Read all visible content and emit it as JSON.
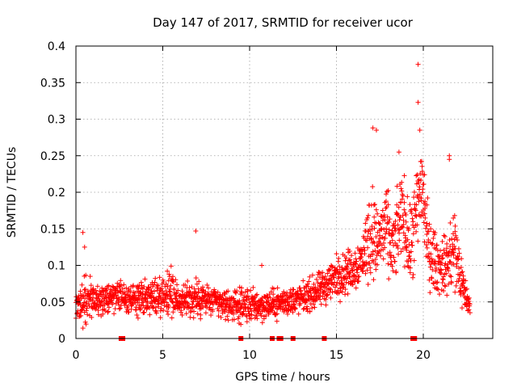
{
  "chart_data": {
    "type": "scatter",
    "title": "Day 147 of 2017, SRMTID for receiver ucor",
    "xlabel": "GPS time / hours",
    "ylabel": "SRMTID / TECUs",
    "xlim": [
      0,
      24
    ],
    "ylim": [
      0,
      0.4
    ],
    "xticks": [
      0,
      5,
      10,
      15,
      20
    ],
    "xtick_labels": [
      "0",
      "5",
      "10",
      "15",
      "20"
    ],
    "yticks": [
      0,
      0.05,
      0.1,
      0.15,
      0.2,
      0.25,
      0.3,
      0.35,
      0.4
    ],
    "ytick_labels": [
      "0",
      "0.05",
      "0.1",
      "0.15",
      "0.2",
      "0.25",
      "0.3",
      "0.35",
      "0.4"
    ],
    "grid": true,
    "marker": "plus",
    "color": "#ff0000",
    "data_gaps_at_zero": [
      2.6,
      2.7,
      9.5,
      11.3,
      11.7,
      11.8,
      12.5,
      14.3,
      19.4,
      19.5
    ],
    "envelope": {
      "x": [
        0,
        0.5,
        1,
        2,
        2.5,
        3,
        4,
        5,
        5.5,
        6,
        7,
        8,
        9,
        10,
        11,
        12,
        13,
        14,
        15,
        16,
        16.5,
        17,
        17.3,
        17.8,
        18.3,
        18.8,
        19.2,
        19.6,
        19.9,
        20.3,
        20.8,
        21.3,
        21.8,
        22.3,
        22.7
      ],
      "mean": [
        0.045,
        0.055,
        0.05,
        0.055,
        0.06,
        0.05,
        0.055,
        0.06,
        0.065,
        0.05,
        0.055,
        0.05,
        0.045,
        0.045,
        0.045,
        0.05,
        0.055,
        0.065,
        0.085,
        0.095,
        0.11,
        0.15,
        0.13,
        0.15,
        0.12,
        0.18,
        0.12,
        0.16,
        0.22,
        0.12,
        0.1,
        0.1,
        0.12,
        0.07,
        0.04
      ],
      "spread": [
        0.02,
        0.035,
        0.02,
        0.02,
        0.02,
        0.02,
        0.025,
        0.03,
        0.035,
        0.02,
        0.03,
        0.02,
        0.02,
        0.025,
        0.02,
        0.02,
        0.02,
        0.025,
        0.03,
        0.03,
        0.035,
        0.07,
        0.05,
        0.06,
        0.05,
        0.06,
        0.05,
        0.08,
        0.08,
        0.05,
        0.04,
        0.04,
        0.07,
        0.03,
        0.015
      ]
    },
    "notable_points": [
      {
        "x": 19.7,
        "y": 0.375
      },
      {
        "x": 19.7,
        "y": 0.323
      },
      {
        "x": 19.8,
        "y": 0.285
      },
      {
        "x": 17.1,
        "y": 0.288
      },
      {
        "x": 17.3,
        "y": 0.285
      },
      {
        "x": 18.6,
        "y": 0.255
      },
      {
        "x": 21.5,
        "y": 0.25
      },
      {
        "x": 21.5,
        "y": 0.245
      },
      {
        "x": 0.4,
        "y": 0.145
      },
      {
        "x": 0.5,
        "y": 0.125
      },
      {
        "x": 6.9,
        "y": 0.147
      },
      {
        "x": 10.7,
        "y": 0.1
      }
    ]
  }
}
